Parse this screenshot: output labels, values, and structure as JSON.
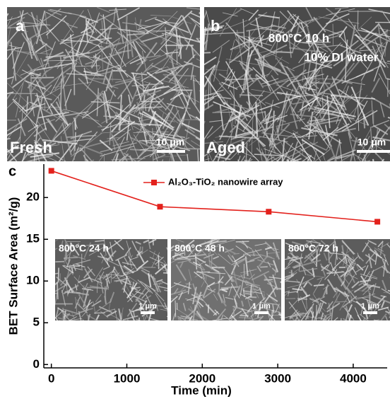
{
  "panels": [
    {
      "label": "a",
      "caption": "Fresh",
      "scale": "10 μm"
    },
    {
      "label": "b",
      "condition": "800°C 10 h",
      "medium": "10% DI water",
      "caption": "Aged",
      "scale": "10 μm"
    }
  ],
  "insets": [
    {
      "label": "800°C 24 h",
      "scale": "1 μm"
    },
    {
      "label": "800°C 48 h",
      "scale": "1 μm"
    },
    {
      "label": "800°C 72 h",
      "scale": "1 μm"
    }
  ],
  "chart_data": {
    "type": "line",
    "panel_label": "c",
    "x_label": "Time (min)",
    "y_label": "BET Surface Area (m²/g)",
    "x": [
      0,
      1440,
      2880,
      4320
    ],
    "series": [
      {
        "name": "Al₂O₃-TiO₂ nanowire array",
        "color": "#e3211c",
        "values": [
          23.2,
          18.9,
          18.3,
          17.1
        ]
      }
    ],
    "xlim": [
      -100,
      4450
    ],
    "xticks": [
      0,
      1000,
      2000,
      3000,
      4000
    ],
    "ylim": [
      -0.4,
      24
    ],
    "yticks": [
      0,
      5,
      10,
      15,
      20
    ],
    "legend": "top",
    "grid": false
  }
}
